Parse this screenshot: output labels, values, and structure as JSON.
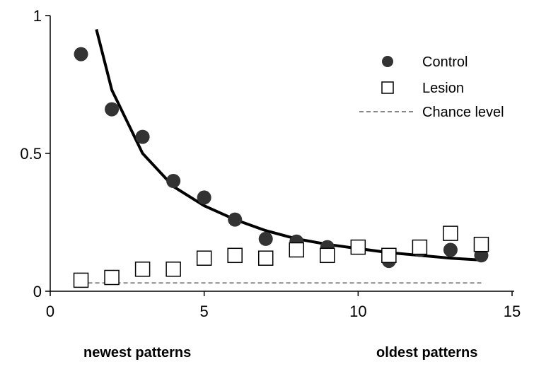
{
  "chart_data": {
    "type": "scatter",
    "xlim": [
      0,
      15
    ],
    "ylim": [
      0,
      1
    ],
    "xticks": [
      "0",
      "5",
      "10",
      "15"
    ],
    "yticks": [
      "0",
      "0.5",
      "1"
    ],
    "x_notes": {
      "left": "newest patterns",
      "right": "oldest patterns"
    },
    "legend_position": "top-right",
    "series": [
      {
        "name": "Control",
        "marker": "filled-circle",
        "color": "#333333",
        "x": [
          1,
          2,
          3,
          4,
          5,
          6,
          7,
          8,
          9,
          10,
          11,
          12,
          13,
          14
        ],
        "y": [
          0.86,
          0.66,
          0.56,
          0.4,
          0.34,
          0.26,
          0.19,
          0.18,
          0.16,
          0.16,
          0.11,
          0.15,
          0.15,
          0.13
        ]
      },
      {
        "name": "Lesion",
        "marker": "open-square",
        "color": "#000000",
        "x": [
          1,
          2,
          3,
          4,
          5,
          6,
          7,
          8,
          9,
          10,
          11,
          12,
          13,
          14
        ],
        "y": [
          0.04,
          0.05,
          0.08,
          0.08,
          0.12,
          0.13,
          0.12,
          0.15,
          0.13,
          0.16,
          0.13,
          0.16,
          0.21,
          0.17
        ]
      },
      {
        "name": "Chance level",
        "style": "dashed",
        "color": "#888888",
        "x": [
          1,
          14
        ],
        "y": [
          0.03,
          0.03
        ]
      }
    ],
    "fit_curve": {
      "style": "solid-thick",
      "color": "#000000",
      "x": [
        1.5,
        2,
        3,
        4,
        5,
        6,
        7,
        8,
        9,
        10,
        11,
        12,
        13,
        14
      ],
      "y": [
        0.95,
        0.73,
        0.5,
        0.38,
        0.31,
        0.26,
        0.22,
        0.19,
        0.17,
        0.155,
        0.14,
        0.13,
        0.12,
        0.113
      ]
    }
  }
}
